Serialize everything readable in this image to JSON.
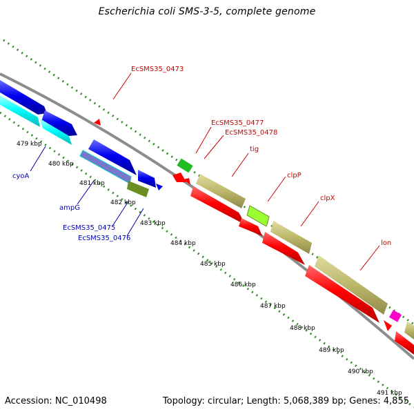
{
  "title": "Escherichia coli SMS-3-5, complete genome",
  "footer": {
    "accession": "Accession: NC_010498",
    "summary": "Topology: circular; Length: 5,068,389 bp; Genes: 4,855"
  },
  "colors": {
    "backbone": "#8c8c8c",
    "tick": "#2e8b22",
    "forward_label": "#cc0000",
    "reverse_label": "#0000aa",
    "cds_red": "#ff0000",
    "cds_blue": "#0000ee",
    "cds_cyan": "#00ffff",
    "cds_khaki": "#bdb76b",
    "cds_olive": "#6b8e23",
    "cds_green": "#22bb22",
    "cds_lime": "#99ff33",
    "cds_magenta": "#ff00cc"
  },
  "scale": {
    "unit": "kbp",
    "ticks": [
      "479 kbp",
      "480 kbp",
      "481 kbp",
      "482 kbp",
      "483 kbp",
      "484 kbp",
      "485 kbp",
      "486 kbp",
      "487 kbp",
      "488 kbp",
      "489 kbp",
      "490 kbp",
      "491 kbp"
    ]
  },
  "genes": {
    "forward": [
      {
        "label": "EcSMS35_0473",
        "color": "cds_red"
      },
      {
        "label": "EcSMS35_0477",
        "color": "cds_green"
      },
      {
        "label": "EcSMS35_0478",
        "color": "cds_red"
      },
      {
        "label": "tig",
        "color": "cds_khaki"
      },
      {
        "label": "clpP",
        "color": "cds_lime"
      },
      {
        "label": "clpX",
        "color": "cds_khaki"
      },
      {
        "label": "lon",
        "color": "cds_khaki"
      }
    ],
    "reverse": [
      {
        "label": "cyoA",
        "color": "cds_cyan"
      },
      {
        "label": "ampG",
        "color": "cds_blue"
      },
      {
        "label": "EcSMS35_0475",
        "color": "cds_cyan"
      },
      {
        "label": "EcSMS35_0476",
        "color": "cds_olive"
      }
    ]
  }
}
